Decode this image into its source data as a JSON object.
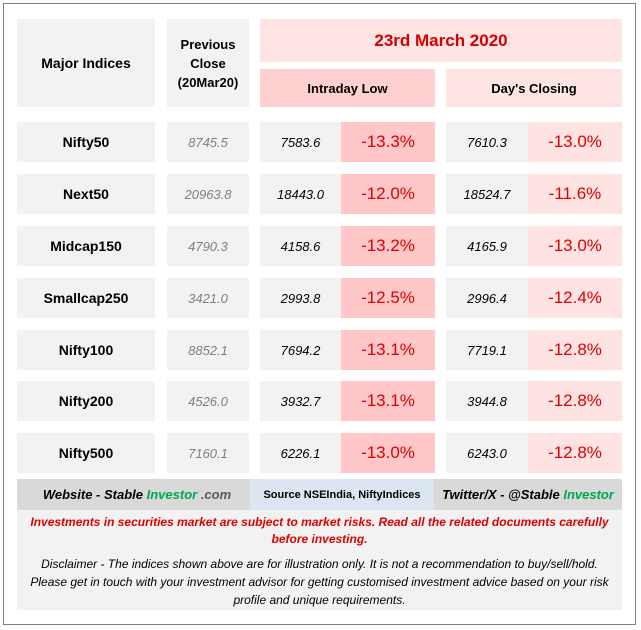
{
  "header": {
    "major_indices": "Major Indices",
    "previous_close_line1": "Previous",
    "previous_close_line2": "Close",
    "previous_close_line3": "(20Mar20)",
    "date": "23rd March 2020",
    "intraday_low": "Intraday Low",
    "days_closing": "Day's Closing"
  },
  "rows": [
    {
      "name": "Nifty50",
      "prev": "8745.5",
      "low": "7583.6",
      "low_pct": "-13.3%",
      "close": "7610.3",
      "close_pct": "-13.0%"
    },
    {
      "name": "Next50",
      "prev": "20963.8",
      "low": "18443.0",
      "low_pct": "-12.0%",
      "close": "18524.7",
      "close_pct": "-11.6%"
    },
    {
      "name": "Midcap150",
      "prev": "4790.3",
      "low": "4158.6",
      "low_pct": "-13.2%",
      "close": "4165.9",
      "close_pct": "-13.0%"
    },
    {
      "name": "Smallcap250",
      "prev": "3421.0",
      "low": "2993.8",
      "low_pct": "-12.5%",
      "close": "2996.4",
      "close_pct": "-12.4%"
    },
    {
      "name": "Nifty100",
      "prev": "8852.1",
      "low": "7694.2",
      "low_pct": "-13.1%",
      "close": "7719.1",
      "close_pct": "-12.8%"
    },
    {
      "name": "Nifty200",
      "prev": "4526.0",
      "low": "3932.7",
      "low_pct": "-13.1%",
      "close": "3944.8",
      "close_pct": "-12.8%"
    },
    {
      "name": "Nifty500",
      "prev": "7160.1",
      "low": "6226.1",
      "low_pct": "-13.0%",
      "close": "6243.0",
      "close_pct": "-12.8%"
    }
  ],
  "footer": {
    "website_prefix": "Website - Stable ",
    "website_brand": "Investor",
    "website_suffix": " .com",
    "source": "Source NSEIndia, NiftyIndices",
    "twitter_prefix": "Twitter/X - @Stable ",
    "twitter_brand": "Investor",
    "warning": "Investments in securities market are subject to market risks. Read all the related documents carefully before investing.",
    "disclaimer": "Disclaimer - The indices shown above are for illustration only. It is not a recommendation to buy/sell/hold. Please get in touch with your investment advisor for getting customised investment advice based on your risk profile and unique requirements."
  },
  "colors": {
    "accent_red": "#e00000",
    "brand_green": "#00a650",
    "pct_low_bg": "#ffc7c7",
    "pct_close_bg": "#ffe3e3"
  }
}
